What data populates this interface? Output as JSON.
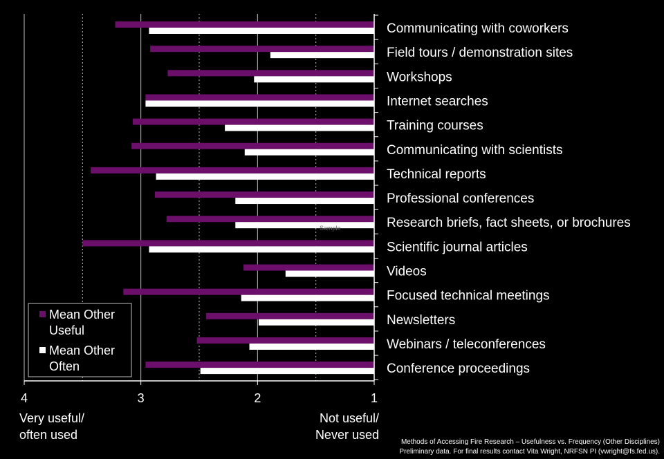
{
  "chart_data": {
    "type": "bar",
    "orientation": "horizontal",
    "x_reversed": true,
    "xlim": [
      1,
      4
    ],
    "xticks": [
      "4",
      "3",
      "2",
      "1"
    ],
    "x_end_labels": {
      "left": [
        "Very useful/",
        "often used"
      ],
      "right": [
        "Not useful/",
        "Never used"
      ]
    },
    "categories": [
      "Communicating with coworkers",
      "Field tours / demonstration sites",
      "Workshops",
      "Internet searches",
      "Training courses",
      "Communicating with scientists",
      "Technical reports",
      "Professional conferences",
      "Research briefs, fact sheets, or brochures",
      "Scientific journal articles",
      "Videos",
      "Focused technical meetings",
      "Newsletters",
      "Webinars / teleconferences",
      "Conference proceedings"
    ],
    "series": [
      {
        "name": "Mean Other Useful",
        "legend_lines": [
          "Mean Other",
          "Useful"
        ],
        "color": "#6b0f6b",
        "values": [
          3.22,
          2.92,
          2.77,
          2.96,
          3.07,
          3.08,
          3.43,
          2.88,
          2.78,
          3.5,
          2.12,
          3.15,
          2.44,
          2.52,
          2.96
        ]
      },
      {
        "name": "Mean Other Often",
        "legend_lines": [
          "Mean Other",
          "Often"
        ],
        "color": "#ffffff",
        "values": [
          2.93,
          1.89,
          2.03,
          2.96,
          2.28,
          2.11,
          2.87,
          2.19,
          2.19,
          2.93,
          1.76,
          2.14,
          1.99,
          2.07,
          2.49
        ]
      }
    ],
    "grid": "vertical-dotted",
    "legend_position": "bottom-left"
  },
  "watermark": "Sample",
  "footer": {
    "title": "Methods of Accessing Fire Research – Usefulness vs. Frequency (Other Disciplines)",
    "note": "Preliminary data. For final results contact Vita Wright, NRFSN PI (vwright@fs.fed.us)."
  },
  "colors": {
    "background": "#000000",
    "useful": "#6b0f6b",
    "often": "#ffffff"
  }
}
